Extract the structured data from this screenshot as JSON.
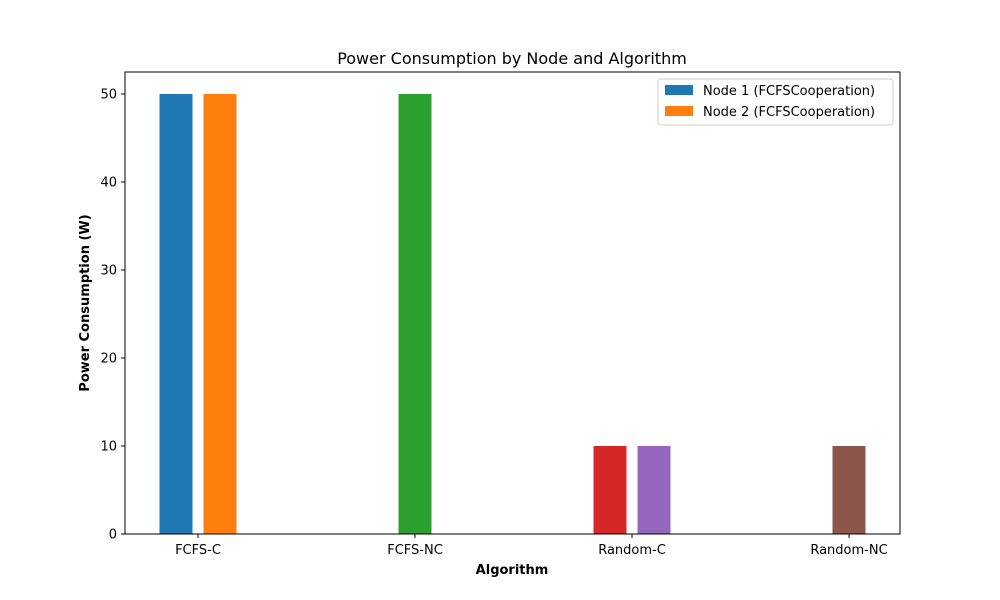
{
  "chart_data": {
    "type": "bar",
    "title": "Power Consumption by Node and Algorithm",
    "xlabel": "Algorithm",
    "ylabel": "Power Consumption (W)",
    "categories": [
      "FCFS-C",
      "FCFS-NC",
      "Random-C",
      "Random-NC"
    ],
    "ylim": [
      0,
      52.5
    ],
    "yticks": [
      "0",
      "10",
      "20",
      "30",
      "40",
      "50"
    ],
    "grid": false,
    "legend_position": "top-right",
    "bars": [
      {
        "category": "FCFS-C",
        "offset": -1,
        "value": 50,
        "color": "#1f77b4"
      },
      {
        "category": "FCFS-C",
        "offset": 1,
        "value": 50,
        "color": "#ff7f0e"
      },
      {
        "category": "FCFS-NC",
        "offset": 0,
        "value": 50,
        "color": "#2ca02c"
      },
      {
        "category": "Random-C",
        "offset": -1,
        "value": 10,
        "color": "#d62728"
      },
      {
        "category": "Random-C",
        "offset": 1,
        "value": 10,
        "color": "#9467bd"
      },
      {
        "category": "Random-NC",
        "offset": 0,
        "value": 10,
        "color": "#8c564b"
      }
    ],
    "legend": [
      {
        "label": "Node 1 (FCFSCooperation)",
        "color": "#1f77b4"
      },
      {
        "label": "Node 2 (FCFSCooperation)",
        "color": "#ff7f0e"
      }
    ]
  }
}
